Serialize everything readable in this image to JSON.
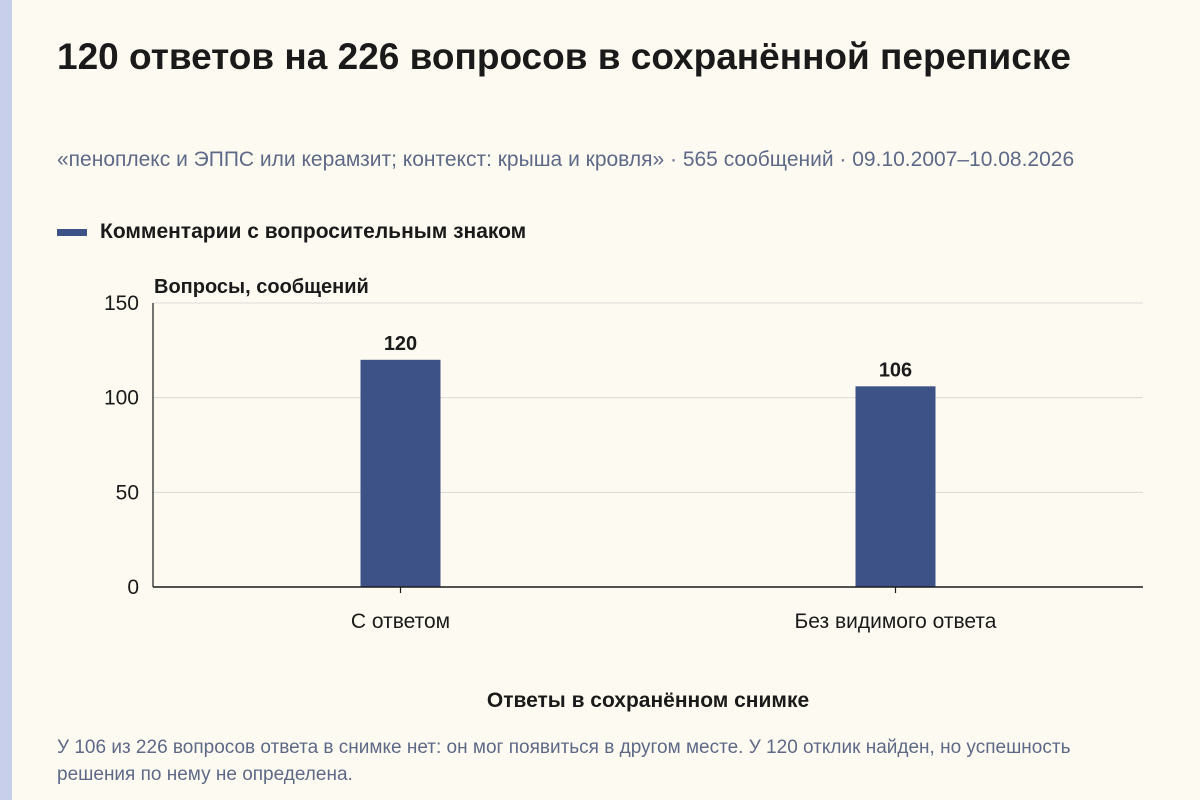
{
  "title": "120 ответов на 226 вопросов в сохранённой переписке",
  "subtitle": "«пеноплекс и ЭППС или керамзит; контекст: крыша и кровля» · 565 сообщений · 09.10.2007–10.08.2026",
  "footnote": "У 106 из 226 вопросов ответа в снимке нет: он мог появиться в другом месте. У 120 отклик найден, но успешность решения по нему не определена.",
  "colors": {
    "bar": "#3d5287",
    "background": "#fdfbf1",
    "grid": "#d9d9d9",
    "muted_text": "#5d6987",
    "accent_strip": "#c7cfea"
  },
  "chart_data": {
    "type": "bar",
    "title": "Ответы в сохранённом снимке",
    "xlabel": "Ответы в сохранённом снимке",
    "ylabel": "Вопросы, сообщений",
    "categories": [
      "С ответом",
      "Без видимого ответа"
    ],
    "series": [
      {
        "name": "Комментарии с вопросительным знаком",
        "values": [
          120,
          106
        ]
      }
    ],
    "ylim": [
      0,
      150
    ],
    "yticks": [
      0,
      50,
      100,
      150
    ],
    "grid": true,
    "data_labels": [
      "120",
      "106"
    ],
    "legend_placement": "top-left"
  }
}
